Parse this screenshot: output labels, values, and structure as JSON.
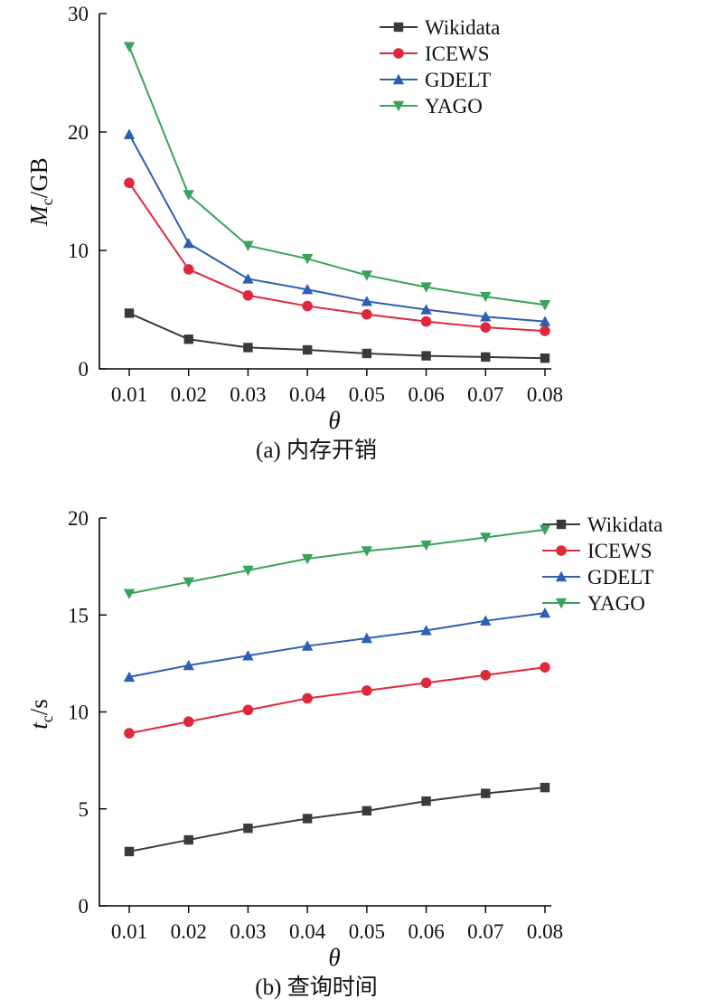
{
  "chart_data": [
    {
      "type": "line",
      "caption": "(a) 内存开销",
      "xlabel": "θ",
      "ylabel_main": "M",
      "ylabel_sub": "c",
      "ylabel_rest": "/GB",
      "x": [
        "0.01",
        "0.02",
        "0.03",
        "0.04",
        "0.05",
        "0.06",
        "0.07",
        "0.08"
      ],
      "ylim": [
        0,
        30
      ],
      "yticks": [
        "0",
        "10",
        "20",
        "30"
      ],
      "legend_position": "top-right",
      "series": [
        {
          "name": "Wikidata",
          "color": "#3a3a3a",
          "marker": "square",
          "values": [
            4.7,
            2.5,
            1.8,
            1.6,
            1.3,
            1.1,
            1.0,
            0.9
          ]
        },
        {
          "name": "ICEWS",
          "color": "#e0283c",
          "marker": "circle",
          "values": [
            15.7,
            8.4,
            6.2,
            5.3,
            4.6,
            4.0,
            3.5,
            3.2
          ]
        },
        {
          "name": "GDELT",
          "color": "#2f5fb3",
          "marker": "triangle-up",
          "values": [
            19.8,
            10.6,
            7.6,
            6.7,
            5.7,
            5.0,
            4.4,
            4.0
          ]
        },
        {
          "name": "YAGO",
          "color": "#3aa35a",
          "marker": "triangle-down",
          "values": [
            27.2,
            14.7,
            10.4,
            9.3,
            7.9,
            6.9,
            6.1,
            5.4
          ]
        }
      ]
    },
    {
      "type": "line",
      "caption": "(b) 查询时间",
      "xlabel": "θ",
      "ylabel_main": "t",
      "ylabel_sub": "c",
      "ylabel_rest": "/s",
      "x": [
        "0.01",
        "0.02",
        "0.03",
        "0.04",
        "0.05",
        "0.06",
        "0.07",
        "0.08"
      ],
      "ylim": [
        0,
        20
      ],
      "yticks": [
        "0",
        "5",
        "10",
        "15",
        "20"
      ],
      "legend_position": "top-right",
      "series": [
        {
          "name": "Wikidata",
          "color": "#3a3a3a",
          "marker": "square",
          "values": [
            2.8,
            3.4,
            4.0,
            4.5,
            4.9,
            5.4,
            5.8,
            6.1
          ]
        },
        {
          "name": "ICEWS",
          "color": "#e0283c",
          "marker": "circle",
          "values": [
            8.9,
            9.5,
            10.1,
            10.7,
            11.1,
            11.5,
            11.9,
            12.3
          ]
        },
        {
          "name": "GDELT",
          "color": "#2f5fb3",
          "marker": "triangle-up",
          "values": [
            11.8,
            12.4,
            12.9,
            13.4,
            13.8,
            14.2,
            14.7,
            15.1
          ]
        },
        {
          "name": "YAGO",
          "color": "#3aa35a",
          "marker": "triangle-down",
          "values": [
            16.1,
            16.7,
            17.3,
            17.9,
            18.3,
            18.6,
            19.0,
            19.4
          ]
        }
      ]
    }
  ]
}
